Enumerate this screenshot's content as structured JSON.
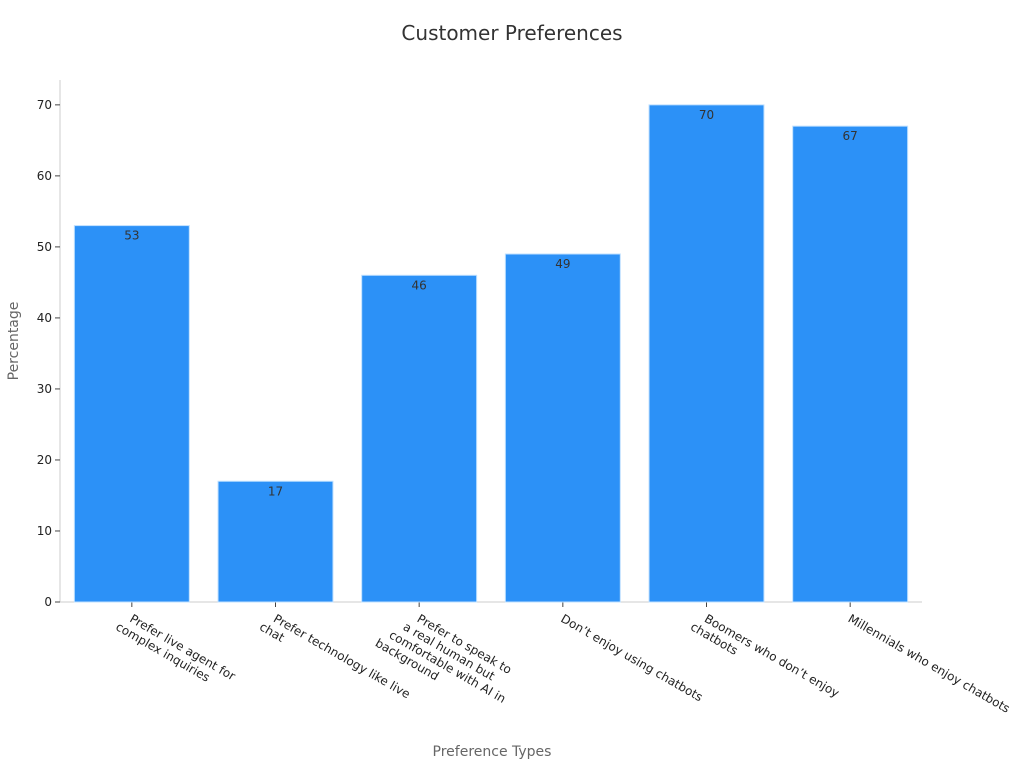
{
  "chart_data": {
    "type": "bar",
    "title": "Customer Preferences",
    "xlabel": "Preference Types",
    "ylabel": "Percentage",
    "categories": [
      [
        "Prefer live agent for",
        "complex inquiries"
      ],
      [
        "Prefer technology like live",
        "chat"
      ],
      [
        "Prefer to speak to",
        "a real human but",
        "comfortable with AI in",
        "background"
      ],
      [
        "Don’t enjoy using chatbots"
      ],
      [
        "Boomers who don’t enjoy",
        "chatbots"
      ],
      [
        "Millennials who enjoy chatbots"
      ]
    ],
    "values": [
      53,
      17,
      46,
      49,
      70,
      67
    ],
    "ylim": [
      0,
      73.5
    ],
    "yticks": [
      0,
      10,
      20,
      30,
      40,
      50,
      60,
      70
    ],
    "bar_color": "#2c91f7",
    "grid": false,
    "data_labels": true
  }
}
